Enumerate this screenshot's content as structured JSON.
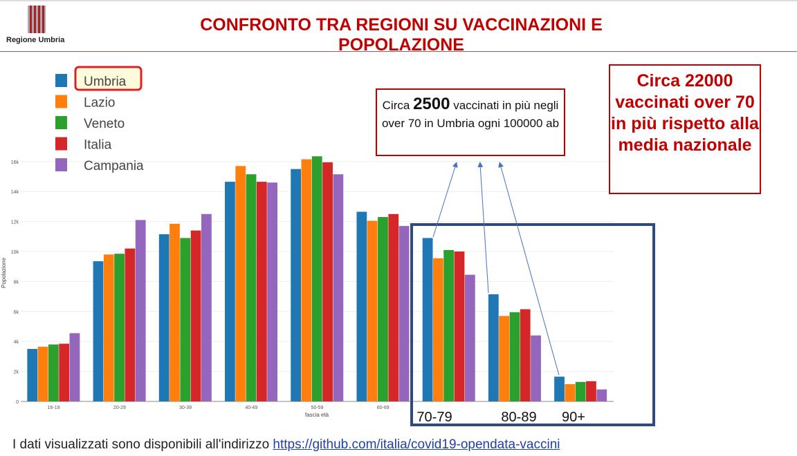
{
  "header": {
    "logo_text": "Regione Umbria",
    "title": "CONFRONTO TRA REGIONI SU VACCINAZIONI E POPOLAZIONE"
  },
  "annotations": {
    "box1_pre": "Circa",
    "box1_num": "2500",
    "box1_post": "vaccinati in più negli over 70 in Umbria ogni 100000 ab",
    "box2": "Circa 22000 vaccinati over 70 in più rispetto alla media nazionale",
    "big_labels": [
      "70-79",
      "80-89",
      "90+"
    ]
  },
  "footer": {
    "text": "I dati visualizzati sono disponibili all'indirizzo ",
    "link": "https://github.com/italia/covid19-opendata-vaccini"
  },
  "chart_data": {
    "type": "bar",
    "title": "",
    "xlabel": "fascia età",
    "ylabel": "Popolazione",
    "ylim": [
      0,
      16500
    ],
    "yticks": [
      0,
      2000,
      4000,
      6000,
      8000,
      10000,
      12000,
      14000,
      16000
    ],
    "ytick_labels": [
      "0",
      "2k",
      "4k",
      "6k",
      "8k",
      "10k",
      "12k",
      "14k",
      "16k"
    ],
    "grid": true,
    "legend_placement": "top-left",
    "highlighted_legend": "Umbria",
    "categories": [
      "16-19",
      "20-29",
      "30-39",
      "40-49",
      "50-59",
      "60-69",
      "70-79",
      "80-89",
      "90+"
    ],
    "series": [
      {
        "name": "Umbria",
        "color": "#1f77b4",
        "values": [
          3500,
          9350,
          11150,
          14650,
          15500,
          12650,
          10900,
          7150,
          1650
        ]
      },
      {
        "name": "Lazio",
        "color": "#ff7f0e",
        "values": [
          3650,
          9800,
          11850,
          15700,
          16150,
          12050,
          9550,
          5700,
          1150
        ]
      },
      {
        "name": "Veneto",
        "color": "#2ca02c",
        "values": [
          3800,
          9850,
          10900,
          15150,
          16350,
          12300,
          10100,
          5950,
          1300
        ]
      },
      {
        "name": "Italia",
        "color": "#d62728",
        "values": [
          3850,
          10200,
          11400,
          14650,
          15950,
          12500,
          10000,
          6150,
          1350
        ]
      },
      {
        "name": "Campania",
        "color": "#9467bd",
        "values": [
          4550,
          12100,
          12500,
          14600,
          15150,
          11700,
          8450,
          4400,
          800
        ]
      }
    ]
  }
}
